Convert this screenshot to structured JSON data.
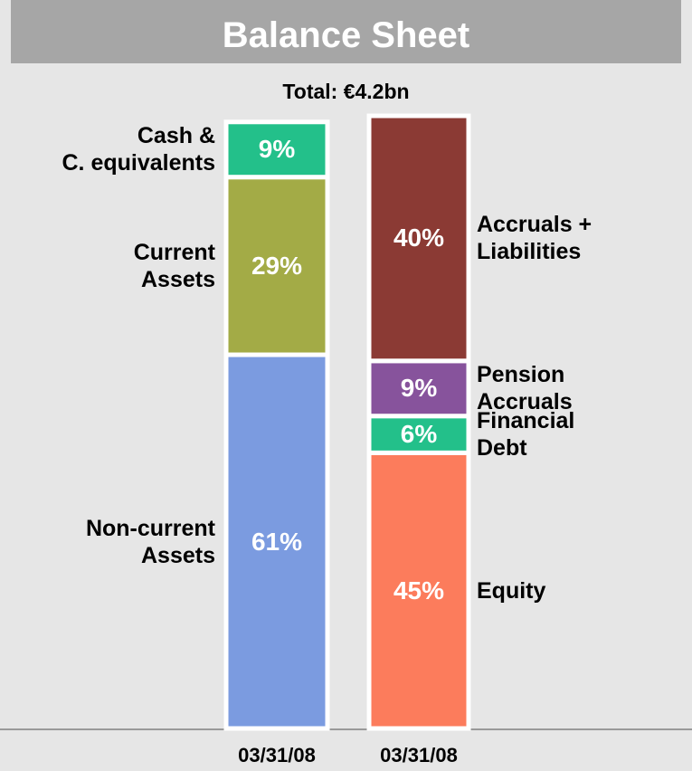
{
  "chart_data": {
    "type": "stacked_bar",
    "title": "Balance Sheet",
    "subtitle": "Total: €4.2bn",
    "categories": [
      "03/31/08",
      "03/31/08"
    ],
    "ylim": [
      0,
      100
    ],
    "series": [
      {
        "name": "Non-current\nAssets",
        "color": "#7b9be0",
        "values": [
          61,
          null
        ],
        "value_labels": [
          "61%",
          null
        ]
      },
      {
        "name": "Current\nAssets",
        "color": "#a3ab46",
        "values": [
          29,
          null
        ],
        "value_labels": [
          "29%",
          null
        ]
      },
      {
        "name": "Cash &\nC. equivalents",
        "color": "#23c08a",
        "values": [
          9,
          null
        ],
        "value_labels": [
          "9%",
          null
        ]
      },
      {
        "name": "Equity",
        "color": "#fc7c5c",
        "values": [
          null,
          45
        ],
        "value_labels": [
          null,
          "45%"
        ]
      },
      {
        "name": "Financial\nDebt",
        "color": "#23c08a",
        "values": [
          null,
          6
        ],
        "value_labels": [
          null,
          "6%"
        ]
      },
      {
        "name": "Pension\nAccruals",
        "color": "#87539c",
        "values": [
          null,
          9
        ],
        "value_labels": [
          null,
          "9%"
        ]
      },
      {
        "name": "Accruals +\nLiabilities",
        "color": "#8b3a34",
        "values": [
          null,
          40
        ],
        "value_labels": [
          null,
          "40%"
        ]
      }
    ]
  }
}
